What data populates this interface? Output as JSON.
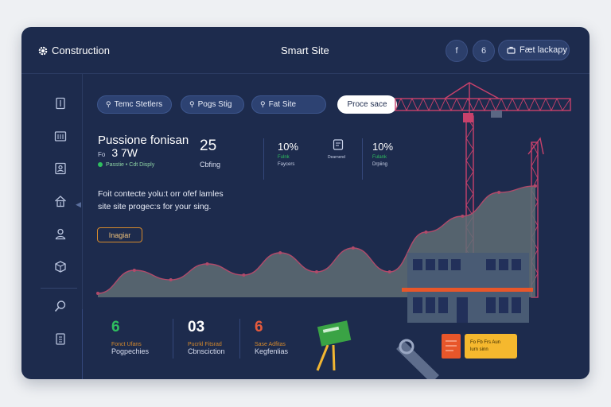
{
  "brand": {
    "name": "Construction",
    "icon": "gear-icon"
  },
  "header": {
    "title": "Smart Site",
    "buttons": [
      {
        "label": "f"
      },
      {
        "label": "6"
      }
    ],
    "pill": {
      "label": "Fæt lackapy",
      "icon": "briefcase-icon"
    }
  },
  "sidebar": {
    "icons": [
      "document-icon",
      "calendar-icon",
      "contact-card-icon",
      "home-icon",
      "user-icon",
      "box-icon",
      "search-icon",
      "clipboard-icon"
    ]
  },
  "filters": [
    {
      "label": "Temc Stetlers",
      "icon": "location-pin-icon"
    },
    {
      "label": "Pogs Stig",
      "icon": "location-pin-icon"
    },
    {
      "label": "Fat Site",
      "icon": "location-pin-icon"
    },
    {
      "label": "Proce sace",
      "active": true
    }
  ],
  "project": {
    "title": "Pussione fonisan",
    "sub_prefix": "Fo",
    "sub_value": "3 7W",
    "status": "Passtie • Cdt Disply"
  },
  "metrics": [
    {
      "value": "25",
      "label": "Cbfing"
    },
    {
      "value": "10%",
      "label_green": "Fulnk",
      "label": "Faycers"
    },
    {
      "icon": "document-icon",
      "label": "Dearnend"
    },
    {
      "value": "10%",
      "label_green": "Fulank",
      "label": "Drpiing"
    }
  ],
  "description": {
    "line1": "Foit contecte yolu:t orr ofef lamles",
    "line2": "site site progec:s for your sing."
  },
  "cta": {
    "label": "Inagiar"
  },
  "chart_data": {
    "type": "area",
    "x": [
      0,
      1,
      2,
      3,
      4,
      5,
      6,
      7,
      8,
      9,
      10,
      11,
      12
    ],
    "values": [
      5,
      34,
      22,
      42,
      28,
      56,
      32,
      62,
      32,
      82,
      102,
      132,
      140
    ],
    "ylim": [
      0,
      160
    ],
    "grid": false,
    "color": "#5f6d74",
    "line_color": "#b14a6a"
  },
  "stats": [
    {
      "value": "6",
      "color": "#2fbf5f",
      "caption": "Fonct Ufans",
      "label": "Pogpechies"
    },
    {
      "value": "03",
      "color": "#ffffff",
      "caption": "Pucrkl Fitsrad",
      "label": "Cbnsciction"
    },
    {
      "value": "6",
      "color": "#e65a3c",
      "caption": "Sase Adfitas",
      "label": "Kegfenlias"
    }
  ],
  "notes": {
    "orange": "≡",
    "yellow_line1": "Fo Fb Frs Aun",
    "yellow_line2": "lurn sinn"
  },
  "colors": {
    "panel": "#1d2b4d",
    "accent_orange": "#d68a2c",
    "crane": "#c8416b",
    "building": "#495b74"
  }
}
